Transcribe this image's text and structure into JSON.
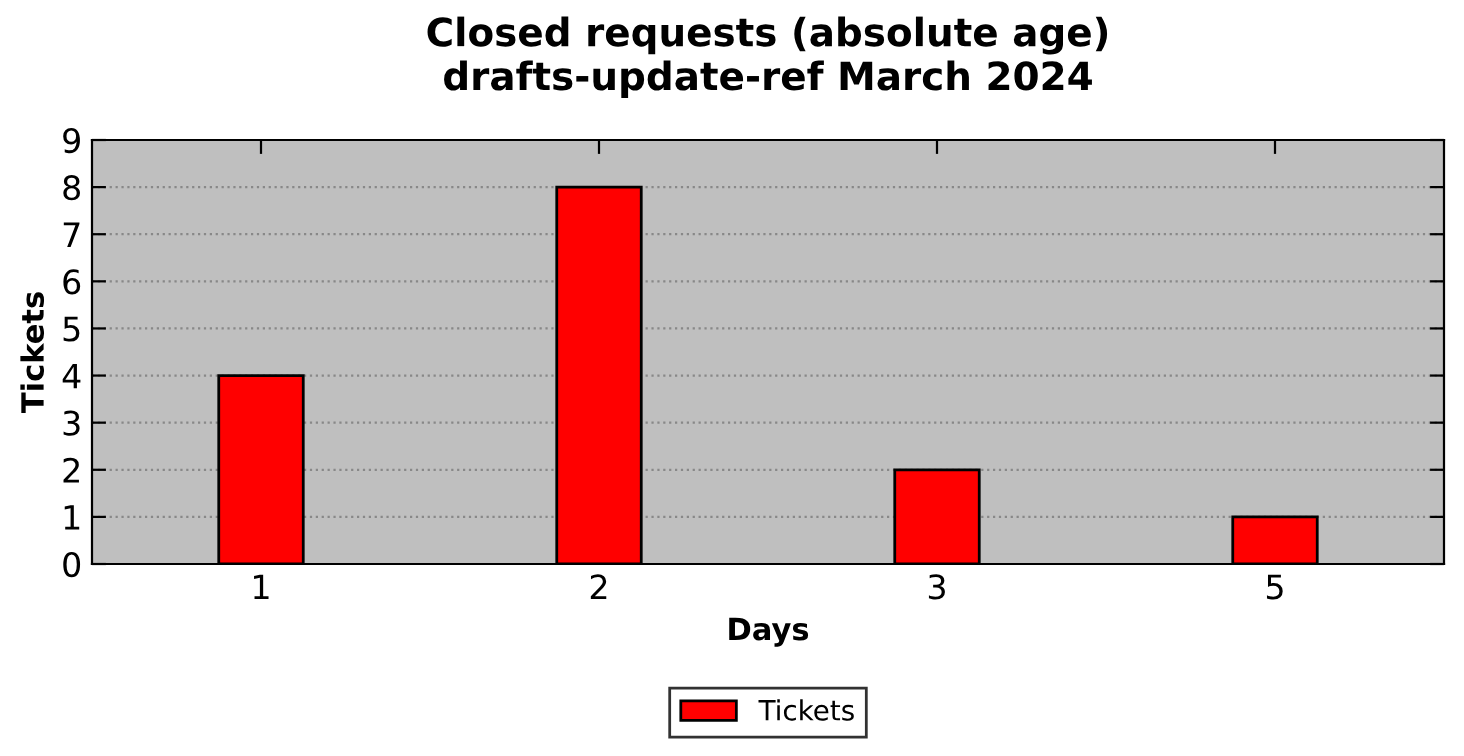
{
  "chart_data": {
    "type": "bar",
    "title": "Closed requests (absolute age)\ndrafts-update-ref March 2024",
    "xlabel": "Days",
    "ylabel": "Tickets",
    "categories": [
      "1",
      "2",
      "3",
      "5"
    ],
    "series": [
      {
        "name": "Tickets",
        "color": "#ff0000",
        "values": [
          4,
          8,
          2,
          1
        ]
      }
    ],
    "ylim": [
      0,
      9
    ],
    "yticks": [
      0,
      1,
      2,
      3,
      4,
      5,
      6,
      7,
      8,
      9
    ],
    "grid": "y",
    "legend": "bottom"
  }
}
